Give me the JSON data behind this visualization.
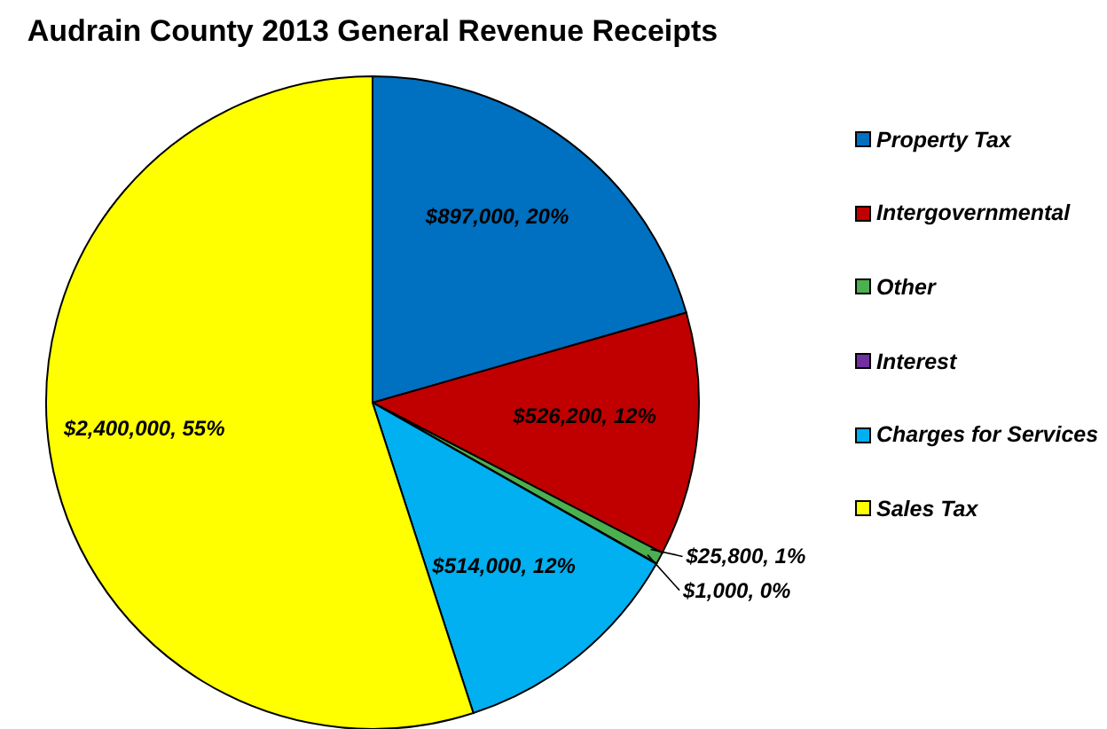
{
  "chart_data": {
    "type": "pie",
    "title": "Audrain County 2013 General Revenue Receipts",
    "categories": [
      "Property Tax",
      "Intergovernmental",
      "Other",
      "Interest",
      "Charges for Services",
      "Sales Tax"
    ],
    "values": [
      897000,
      526200,
      25800,
      1000,
      514000,
      2400000
    ],
    "colors": [
      "#0070c0",
      "#c00000",
      "#4caf50",
      "#7030a0",
      "#00b0f0",
      "#ffff00"
    ],
    "value_labels": [
      "$897,000, 20%",
      "$526,200, 12%",
      "$25,800, 1%",
      "$1,000, 0%",
      "$514,000, 12%",
      "$2,400,000, 55%"
    ],
    "legend": "right"
  }
}
